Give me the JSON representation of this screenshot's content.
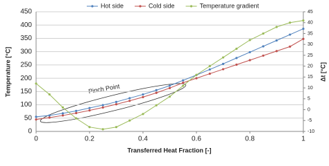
{
  "chart_data": {
    "type": "line",
    "x_label": "Transferred Heat Fraction [-]",
    "y_label": "Temperature [°C]",
    "y2_label": "Δt [°C]",
    "annotation": "Pinch Point",
    "x": [
      0,
      0.05,
      0.1,
      0.15,
      0.2,
      0.25,
      0.3,
      0.35,
      0.4,
      0.45,
      0.5,
      0.55,
      0.6,
      0.65,
      0.7,
      0.75,
      0.8,
      0.85,
      0.9,
      0.95,
      1
    ],
    "series": [
      {
        "name": "Hot side",
        "color": "#4f81bd",
        "values": [
          55,
          60,
          68,
          77,
          88,
          99,
          111,
          125,
          139,
          155,
          172,
          192,
          212,
          233,
          254,
          276,
          298,
          320,
          342,
          364,
          386
        ]
      },
      {
        "name": "Cold side",
        "color": "#c0504d",
        "values": [
          45,
          52,
          60,
          69,
          79,
          90,
          102,
          115,
          129,
          145,
          163,
          183,
          200,
          217,
          234,
          251,
          268,
          285,
          302,
          319,
          348
        ]
      },
      {
        "name": "Temperature gradient",
        "color": "#9bbb59",
        "axis": "y2",
        "values": [
          12,
          7,
          1,
          -4,
          -8,
          -9,
          -8,
          -5,
          -2,
          2,
          6,
          11,
          16,
          20,
          24,
          28,
          32,
          35,
          38,
          40,
          41
        ]
      }
    ],
    "xlim": [
      0,
      1
    ],
    "xticks": [
      0,
      0.2,
      0.4,
      0.6,
      0.8,
      1
    ],
    "ylim": [
      0,
      450
    ],
    "yticks": [
      0,
      50,
      100,
      150,
      200,
      250,
      300,
      350,
      400,
      450
    ],
    "y2lim": [
      -10,
      45
    ],
    "y2ticks": [
      -10,
      -5,
      0,
      5,
      10,
      15,
      20,
      25,
      30,
      35,
      40,
      45
    ],
    "grid": true,
    "legend": "top"
  }
}
